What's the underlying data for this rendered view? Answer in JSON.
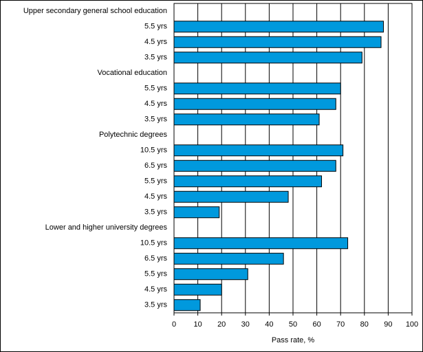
{
  "chart_data": {
    "type": "bar",
    "orientation": "horizontal",
    "categories": [
      "Upper secondary general school education",
      "5.5 yrs",
      "4.5 yrs",
      "3.5 yrs",
      "Vocational education",
      "5.5 yrs",
      "4.5 yrs",
      "3.5 yrs",
      "Polytechnic degrees",
      "10.5 yrs",
      "6.5 yrs",
      "5.5 yrs",
      "4.5 yrs",
      "3.5 yrs",
      "Lower and higher university degrees",
      "10.5 yrs",
      "6.5 yrs",
      "5.5 yrs",
      "4.5 yrs",
      "3.5 yrs"
    ],
    "values": [
      null,
      88,
      87,
      79,
      null,
      70,
      68,
      61,
      null,
      71,
      68,
      62,
      48,
      19,
      null,
      73,
      46,
      31,
      20,
      11
    ],
    "color": "#0099dd",
    "xlabel": "Pass rate, %",
    "xlim": [
      0,
      100
    ],
    "xticks": [
      0,
      10,
      20,
      30,
      40,
      50,
      60,
      70,
      80,
      90,
      100
    ],
    "grid": true
  }
}
